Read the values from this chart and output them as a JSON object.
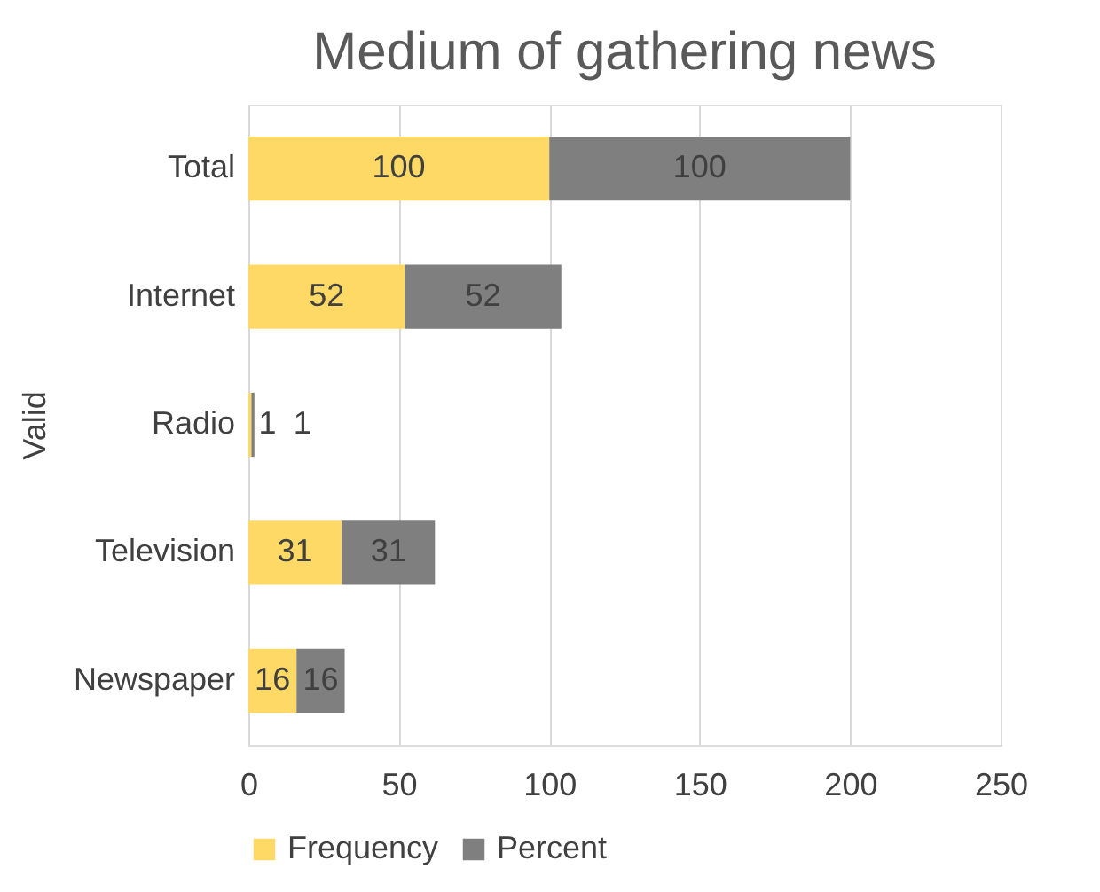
{
  "chart_data": {
    "type": "bar",
    "orientation": "horizontal",
    "stacked": true,
    "title": "Medium of gathering news",
    "ylabel": "Valid",
    "categories": [
      "Total",
      "Internet",
      "Radio",
      "Television",
      "Newspaper"
    ],
    "series": [
      {
        "name": "Frequency",
        "color": "#ffd966",
        "values": [
          100,
          52,
          1,
          31,
          16
        ]
      },
      {
        "name": "Percent",
        "color": "#7f7f7f",
        "values": [
          100,
          52,
          1,
          31,
          16
        ]
      }
    ],
    "xlim": [
      0,
      250
    ],
    "xticks": [
      0,
      50,
      100,
      150,
      200,
      250
    ],
    "grid": "x",
    "legend": "bottom",
    "data_labels": true
  }
}
